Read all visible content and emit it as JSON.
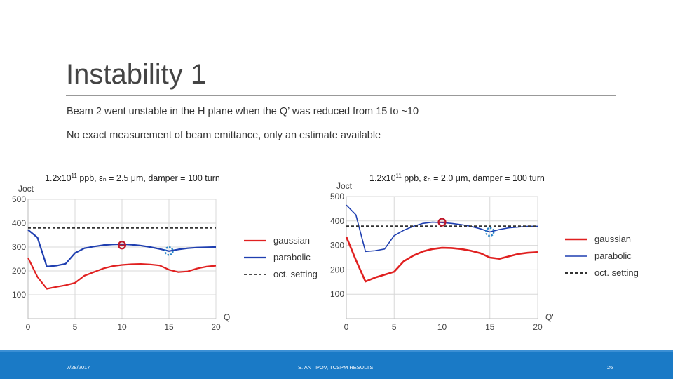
{
  "slide": {
    "title": "Instability 1",
    "bullets": [
      "Beam 2 went unstable in the H plane when the Q’ was reduced from 15 to ~10",
      "No exact measurement of beam emittance, only an estimate available"
    ]
  },
  "captions": [
    {
      "pre": "1.2x10",
      "sup": "11",
      "post": " ppb, εₙ = 2.5 μm, damper = 100 turn"
    },
    {
      "pre": "1.2x10",
      "sup": "11",
      "post": " ppb, εₙ = 2.0 μm, damper = 100 turn"
    }
  ],
  "footer": {
    "date": "7/28/2017",
    "center": "S. ANTIPOV, TCSPM RESULTS",
    "page": "26"
  },
  "colors": {
    "gaussian": "#e02020",
    "parabolic": "#1f3fb0",
    "oct": "#333333",
    "marker_red": "#c0182a",
    "marker_blue": "#2a86c8",
    "footer": "#1a7ac6"
  },
  "chart_data": [
    {
      "type": "line",
      "title": "",
      "xlabel": "Q'",
      "ylabel": "Joct",
      "xlim": [
        0,
        20
      ],
      "ylim": [
        0,
        500
      ],
      "xticks": [
        0,
        5,
        10,
        15,
        20
      ],
      "yticks": [
        100,
        200,
        300,
        400,
        500
      ],
      "grid": true,
      "legend": "right",
      "series": [
        {
          "name": "gaussian",
          "x": [
            0,
            1,
            2,
            3,
            4,
            5,
            6,
            7,
            8,
            9,
            10,
            11,
            12,
            13,
            14,
            15,
            16,
            17,
            18,
            19,
            20
          ],
          "y": [
            255,
            175,
            125,
            133,
            140,
            150,
            180,
            195,
            210,
            220,
            225,
            228,
            229,
            227,
            223,
            205,
            195,
            198,
            210,
            218,
            222
          ]
        },
        {
          "name": "parabolic",
          "x": [
            0,
            1,
            2,
            3,
            4,
            5,
            6,
            7,
            8,
            9,
            10,
            11,
            12,
            13,
            14,
            15,
            16,
            17,
            18,
            19,
            20
          ],
          "y": [
            372,
            340,
            218,
            222,
            230,
            275,
            295,
            302,
            308,
            311,
            312,
            310,
            306,
            300,
            292,
            283,
            290,
            295,
            298,
            299,
            300
          ]
        },
        {
          "name": "oct. setting",
          "x": [
            0,
            20
          ],
          "y": [
            380,
            380
          ]
        }
      ],
      "markers": [
        {
          "x": 10,
          "y": 308,
          "kind": "unstable"
        },
        {
          "x": 15,
          "y": 283,
          "kind": "stable"
        }
      ]
    },
    {
      "type": "line",
      "title": "",
      "xlabel": "Q'",
      "ylabel": "Joct",
      "xlim": [
        0,
        20
      ],
      "ylim": [
        0,
        500
      ],
      "xticks": [
        0,
        5,
        10,
        15,
        20
      ],
      "yticks": [
        100,
        200,
        300,
        400,
        500
      ],
      "grid": true,
      "legend": "right",
      "series": [
        {
          "name": "gaussian",
          "x": [
            0,
            1,
            2,
            3,
            4,
            5,
            6,
            7,
            8,
            9,
            10,
            11,
            12,
            13,
            14,
            15,
            16,
            17,
            18,
            19,
            20
          ],
          "y": [
            335,
            240,
            152,
            168,
            180,
            192,
            235,
            258,
            275,
            285,
            290,
            289,
            285,
            278,
            268,
            250,
            245,
            255,
            265,
            270,
            272
          ]
        },
        {
          "name": "parabolic",
          "x": [
            0,
            1,
            2,
            3,
            4,
            5,
            6,
            7,
            8,
            9,
            10,
            11,
            12,
            13,
            14,
            15,
            16,
            17,
            18,
            19,
            20
          ],
          "y": [
            465,
            425,
            275,
            278,
            285,
            340,
            362,
            378,
            390,
            395,
            393,
            390,
            385,
            378,
            368,
            355,
            365,
            372,
            375,
            378,
            378
          ]
        },
        {
          "name": "oct. setting",
          "x": [
            0,
            20
          ],
          "y": [
            378,
            378
          ]
        }
      ],
      "markers": [
        {
          "x": 10,
          "y": 395,
          "kind": "unstable"
        },
        {
          "x": 15,
          "y": 355,
          "kind": "stable"
        }
      ]
    }
  ]
}
